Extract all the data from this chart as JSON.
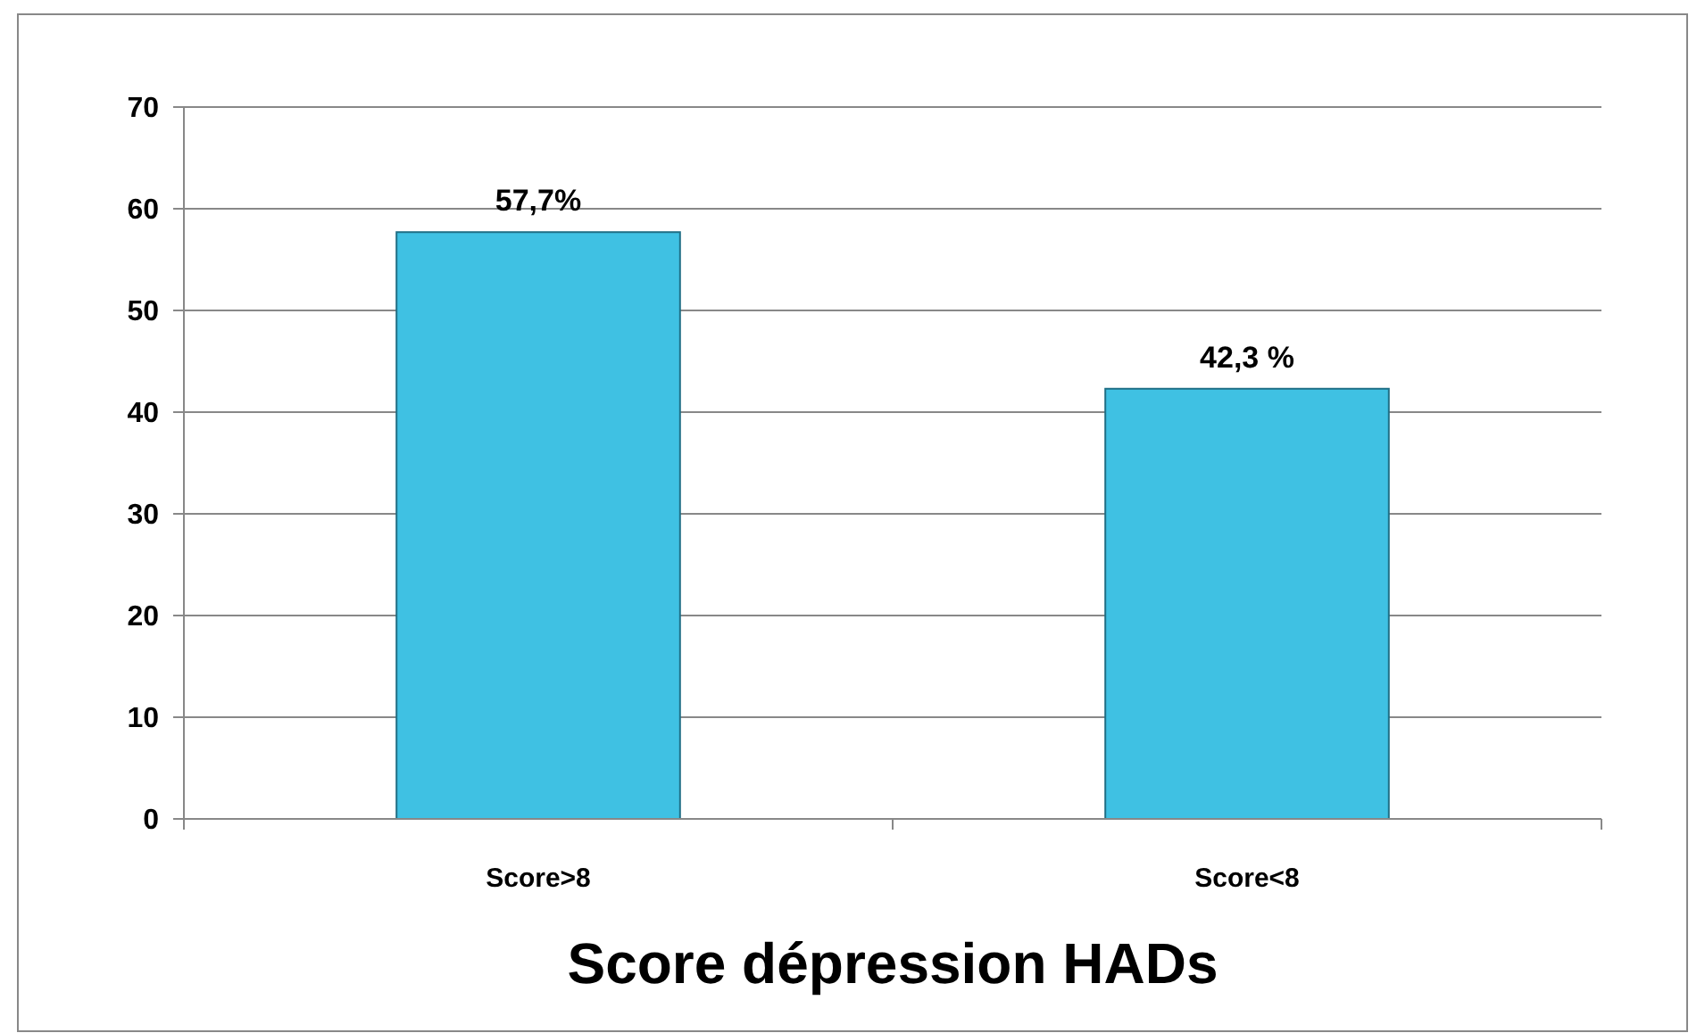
{
  "chart_data": {
    "type": "bar",
    "title": "Score dépression HADs",
    "categories": [
      "Score>8",
      "Score<8"
    ],
    "values": [
      57.7,
      42.3
    ],
    "value_labels": [
      "57,7%",
      "42,3 %"
    ],
    "color": "#3fc1e3",
    "ylim": [
      0,
      70
    ],
    "yticks": [
      0,
      10,
      20,
      30,
      40,
      50,
      60,
      70
    ],
    "grid": "y"
  }
}
